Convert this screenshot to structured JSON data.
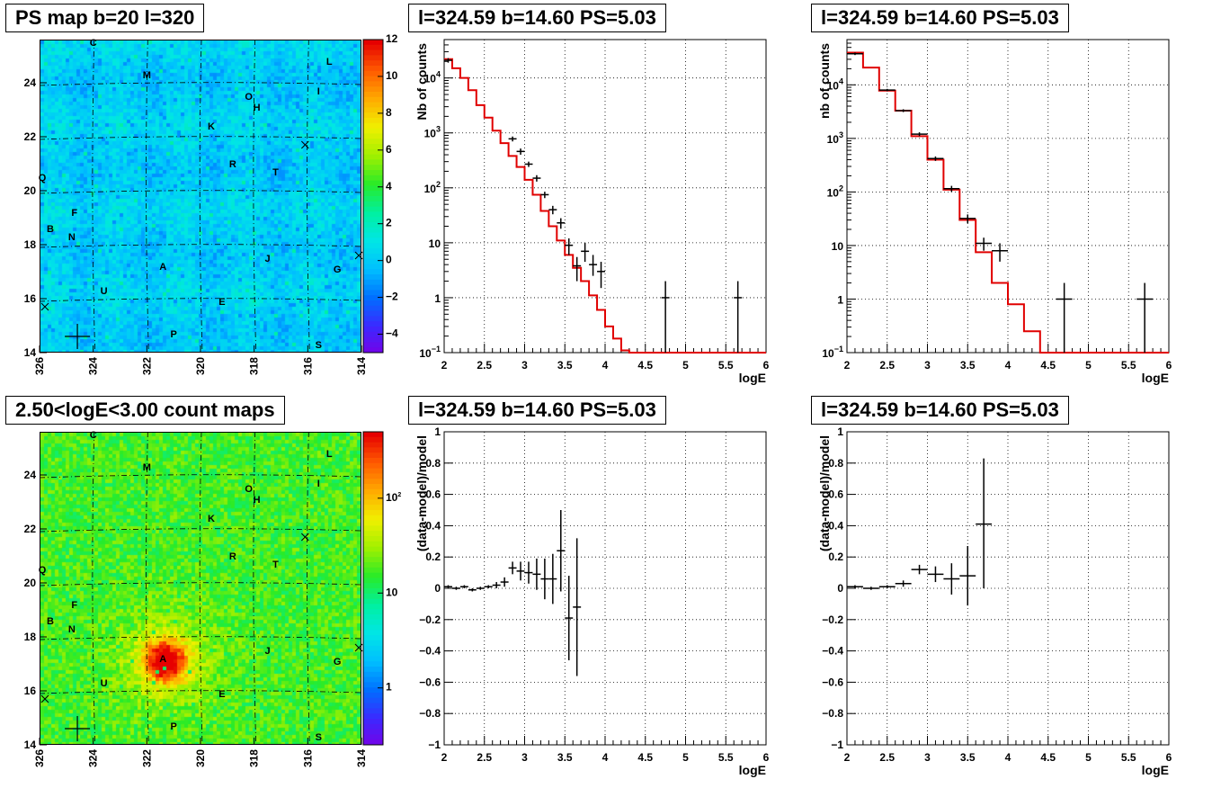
{
  "chart_data": [
    {
      "id": "psmap",
      "type": "heatmap",
      "title": "PS map b=20 l=320",
      "x_ticks": [
        "326",
        "324",
        "322",
        "320",
        "318",
        "316",
        "314"
      ],
      "x_range": [
        326,
        314
      ],
      "y_ticks": [
        "14",
        "16",
        "18",
        "20",
        "22",
        "24"
      ],
      "y_range": [
        14,
        25.6
      ],
      "zlim": [
        -5,
        12
      ],
      "color_scale_ticks": [
        "12",
        "10",
        "8",
        "6",
        "4",
        "2",
        "0",
        "−2",
        "−4"
      ],
      "color_scale_values": [
        12,
        10,
        8,
        6,
        4,
        2,
        0,
        -2,
        -4
      ],
      "colors": {
        "background": "#00d8f0"
      },
      "sources": [
        {
          "label": "C",
          "l": 324.0,
          "b": 25.5
        },
        {
          "label": "M",
          "l": 322.0,
          "b": 24.3
        },
        {
          "label": "L",
          "l": 315.2,
          "b": 24.8
        },
        {
          "label": "I",
          "l": 315.6,
          "b": 23.7
        },
        {
          "label": "O",
          "l": 318.2,
          "b": 23.5
        },
        {
          "label": "H",
          "l": 317.9,
          "b": 23.1
        },
        {
          "label": "K",
          "l": 319.6,
          "b": 22.4
        },
        {
          "label": "R",
          "l": 318.8,
          "b": 21.0
        },
        {
          "label": "T",
          "l": 317.2,
          "b": 20.7
        },
        {
          "label": "Q",
          "l": 325.9,
          "b": 20.5
        },
        {
          "label": "F",
          "l": 324.7,
          "b": 19.2
        },
        {
          "label": "B",
          "l": 325.6,
          "b": 18.6
        },
        {
          "label": "N",
          "l": 324.8,
          "b": 18.3
        },
        {
          "label": "A",
          "l": 321.4,
          "b": 17.2
        },
        {
          "label": "J",
          "l": 317.5,
          "b": 17.5
        },
        {
          "label": "G",
          "l": 314.9,
          "b": 17.1
        },
        {
          "label": "U",
          "l": 323.6,
          "b": 16.3
        },
        {
          "label": "E",
          "l": 319.2,
          "b": 15.9
        },
        {
          "label": "P",
          "l": 321.0,
          "b": 14.7
        },
        {
          "label": "S",
          "l": 315.6,
          "b": 14.3
        }
      ]
    },
    {
      "id": "spec1",
      "type": "line",
      "title": "l=324.59 b=14.60 PS=5.03",
      "xlabel": "logE",
      "ylabel": "Nb of counts",
      "xlim": [
        2,
        6
      ],
      "ylim": [
        0.1,
        50000
      ],
      "yscale": "log",
      "x_ticks": [
        "2",
        "2.5",
        "3",
        "3.5",
        "4",
        "4.5",
        "5",
        "5.5",
        "6"
      ],
      "y_ticks": [
        {
          "v": 0.1,
          "b": "10",
          "e": "−1"
        },
        {
          "v": 1,
          "b": "1",
          "e": ""
        },
        {
          "v": 10,
          "b": "10",
          "e": ""
        },
        {
          "v": 100,
          "b": "10",
          "e": "2"
        },
        {
          "v": 1000,
          "b": "10",
          "e": "3"
        },
        {
          "v": 10000,
          "b": "10",
          "e": "4"
        }
      ],
      "grid": true,
      "model_bin_edges": [
        2.0,
        2.1,
        2.2,
        2.3,
        2.4,
        2.5,
        2.6,
        2.7,
        2.8,
        2.9,
        3.0,
        3.1,
        3.2,
        3.3,
        3.4,
        3.5,
        3.6,
        3.7,
        3.8,
        3.9,
        4.0,
        4.1,
        4.2,
        4.3,
        6.0
      ],
      "model_values": [
        22000,
        15000,
        10000,
        6000,
        3200,
        1900,
        1100,
        650,
        380,
        240,
        140,
        75,
        38,
        20,
        11,
        6,
        3.5,
        2,
        1.1,
        0.6,
        0.3,
        0.18,
        0.11,
        0.1
      ],
      "data_points": [
        {
          "x": 2.05,
          "y": 21000,
          "lo": 19000,
          "hi": 23000,
          "xw": 0.05
        },
        {
          "x": 2.85,
          "y": 780,
          "lo": 700,
          "hi": 860,
          "xw": 0.05
        },
        {
          "x": 2.95,
          "y": 460,
          "lo": 400,
          "hi": 520,
          "xw": 0.05
        },
        {
          "x": 3.05,
          "y": 270,
          "lo": 240,
          "hi": 300,
          "xw": 0.05
        },
        {
          "x": 3.15,
          "y": 150,
          "lo": 130,
          "hi": 170,
          "xw": 0.05
        },
        {
          "x": 3.25,
          "y": 75,
          "lo": 65,
          "hi": 85,
          "xw": 0.05
        },
        {
          "x": 3.35,
          "y": 40,
          "lo": 33,
          "hi": 47,
          "xw": 0.05
        },
        {
          "x": 3.45,
          "y": 23,
          "lo": 18,
          "hi": 28,
          "xw": 0.05
        },
        {
          "x": 3.55,
          "y": 9,
          "lo": 6,
          "hi": 12,
          "xw": 0.05
        },
        {
          "x": 3.65,
          "y": 3.8,
          "lo": 2,
          "hi": 5.5,
          "xw": 0.05
        },
        {
          "x": 3.75,
          "y": 7,
          "lo": 4.5,
          "hi": 10,
          "xw": 0.05
        },
        {
          "x": 3.85,
          "y": 4,
          "lo": 2.5,
          "hi": 6,
          "xw": 0.05
        },
        {
          "x": 3.95,
          "y": 3,
          "lo": 1.5,
          "hi": 4.5,
          "xw": 0.05
        },
        {
          "x": 4.75,
          "y": 1,
          "lo": 0.1,
          "hi": 2,
          "xw": 0.05
        },
        {
          "x": 5.65,
          "y": 1,
          "lo": 0.1,
          "hi": 2,
          "xw": 0.05
        }
      ]
    },
    {
      "id": "spec2",
      "type": "line",
      "title": "l=324.59 b=14.60 PS=5.03",
      "xlabel": "logE",
      "ylabel": "nb of counts",
      "xlim": [
        2,
        6
      ],
      "ylim": [
        0.1,
        70000
      ],
      "yscale": "log",
      "x_ticks": [
        "2",
        "2.5",
        "3",
        "3.5",
        "4",
        "4.5",
        "5",
        "5.5",
        "6"
      ],
      "y_ticks": [
        {
          "v": 0.1,
          "b": "10",
          "e": "−1"
        },
        {
          "v": 1,
          "b": "1",
          "e": ""
        },
        {
          "v": 10,
          "b": "10",
          "e": ""
        },
        {
          "v": 100,
          "b": "10",
          "e": "2"
        },
        {
          "v": 1000,
          "b": "10",
          "e": "3"
        },
        {
          "v": 10000,
          "b": "10",
          "e": "4"
        }
      ],
      "grid": true,
      "model_bin_edges": [
        2.0,
        2.2,
        2.4,
        2.6,
        2.8,
        3.0,
        3.2,
        3.4,
        3.6,
        3.8,
        4.0,
        4.2,
        4.4,
        6.0
      ],
      "model_values": [
        40000,
        21000,
        7800,
        3300,
        1100,
        400,
        110,
        30,
        7.5,
        2,
        0.8,
        0.25,
        0.1
      ],
      "data_points": [
        {
          "x": 2.1,
          "y": 38000,
          "lo": 36000,
          "hi": 40000,
          "xw": 0.1
        },
        {
          "x": 2.5,
          "y": 8000,
          "lo": 7600,
          "hi": 8400,
          "xw": 0.1
        },
        {
          "x": 2.7,
          "y": 3300,
          "lo": 3100,
          "hi": 3500,
          "xw": 0.1
        },
        {
          "x": 2.9,
          "y": 1200,
          "lo": 1100,
          "hi": 1300,
          "xw": 0.1
        },
        {
          "x": 3.1,
          "y": 420,
          "lo": 380,
          "hi": 460,
          "xw": 0.1
        },
        {
          "x": 3.3,
          "y": 115,
          "lo": 100,
          "hi": 130,
          "xw": 0.1
        },
        {
          "x": 3.5,
          "y": 32,
          "lo": 26,
          "hi": 38,
          "xw": 0.1
        },
        {
          "x": 3.7,
          "y": 11,
          "lo": 8,
          "hi": 14,
          "xw": 0.1
        },
        {
          "x": 3.9,
          "y": 8,
          "lo": 5,
          "hi": 11,
          "xw": 0.1
        },
        {
          "x": 4.7,
          "y": 1,
          "lo": 0.1,
          "hi": 2,
          "xw": 0.1
        },
        {
          "x": 5.7,
          "y": 1,
          "lo": 0.1,
          "hi": 2,
          "xw": 0.1
        }
      ]
    },
    {
      "id": "countmap",
      "type": "heatmap",
      "title": "2.50<logE<3.00 count maps",
      "x_ticks": [
        "326",
        "324",
        "322",
        "320",
        "318",
        "316",
        "314"
      ],
      "x_range": [
        326,
        314
      ],
      "y_ticks": [
        "14",
        "16",
        "18",
        "20",
        "22",
        "24"
      ],
      "y_range": [
        14,
        25.6
      ],
      "zscale": "log",
      "color_scale_ticks": [
        {
          "b": "10",
          "e": "2"
        },
        {
          "b": "10",
          "e": ""
        },
        {
          "b": "1",
          "e": ""
        }
      ],
      "color_scale_values": [
        100,
        10,
        1
      ],
      "colors": {
        "background": "#40e020",
        "hot": "#e00000"
      },
      "sources": [
        {
          "label": "C",
          "l": 324.0,
          "b": 25.5
        },
        {
          "label": "M",
          "l": 322.0,
          "b": 24.3
        },
        {
          "label": "L",
          "l": 315.2,
          "b": 24.8
        },
        {
          "label": "I",
          "l": 315.6,
          "b": 23.7
        },
        {
          "label": "O",
          "l": 318.2,
          "b": 23.5
        },
        {
          "label": "H",
          "l": 317.9,
          "b": 23.1
        },
        {
          "label": "K",
          "l": 319.6,
          "b": 22.4
        },
        {
          "label": "R",
          "l": 318.8,
          "b": 21.0
        },
        {
          "label": "T",
          "l": 317.2,
          "b": 20.7
        },
        {
          "label": "Q",
          "l": 325.9,
          "b": 20.5
        },
        {
          "label": "F",
          "l": 324.7,
          "b": 19.2
        },
        {
          "label": "B",
          "l": 325.6,
          "b": 18.6
        },
        {
          "label": "N",
          "l": 324.8,
          "b": 18.3
        },
        {
          "label": "A",
          "l": 321.4,
          "b": 17.2
        },
        {
          "label": "J",
          "l": 317.5,
          "b": 17.5
        },
        {
          "label": "G",
          "l": 314.9,
          "b": 17.1
        },
        {
          "label": "U",
          "l": 323.6,
          "b": 16.3
        },
        {
          "label": "E",
          "l": 319.2,
          "b": 15.9
        },
        {
          "label": "P",
          "l": 321.0,
          "b": 14.7
        },
        {
          "label": "S",
          "l": 315.6,
          "b": 14.3
        }
      ]
    },
    {
      "id": "res1",
      "type": "scatter",
      "title": "l=324.59 b=14.60 PS=5.03",
      "xlabel": "logE",
      "ylabel": "(data-model)/model",
      "xlim": [
        2,
        6
      ],
      "ylim": [
        -1,
        1
      ],
      "x_ticks": [
        "2",
        "2.5",
        "3",
        "3.5",
        "4",
        "4.5",
        "5",
        "5.5",
        "6"
      ],
      "y_ticks": [
        "1",
        "0.8",
        "0.6",
        "0.4",
        "0.2",
        "0",
        "−0.2",
        "−0.4",
        "−0.6",
        "−0.8",
        "−1"
      ],
      "grid": true,
      "data_points": [
        {
          "x": 2.05,
          "y": 0.01,
          "lo": 0.0,
          "hi": 0.02,
          "xw": 0.05
        },
        {
          "x": 2.15,
          "y": 0.0,
          "lo": -0.01,
          "hi": 0.01,
          "xw": 0.05
        },
        {
          "x": 2.25,
          "y": 0.01,
          "lo": 0.0,
          "hi": 0.02,
          "xw": 0.05
        },
        {
          "x": 2.35,
          "y": -0.01,
          "lo": -0.02,
          "hi": 0.0,
          "xw": 0.05
        },
        {
          "x": 2.45,
          "y": 0.0,
          "lo": -0.01,
          "hi": 0.01,
          "xw": 0.05
        },
        {
          "x": 2.55,
          "y": 0.01,
          "lo": 0.0,
          "hi": 0.02,
          "xw": 0.05
        },
        {
          "x": 2.65,
          "y": 0.02,
          "lo": 0.0,
          "hi": 0.04,
          "xw": 0.05
        },
        {
          "x": 2.75,
          "y": 0.04,
          "lo": 0.01,
          "hi": 0.07,
          "xw": 0.05
        },
        {
          "x": 2.85,
          "y": 0.13,
          "lo": 0.09,
          "hi": 0.17,
          "xw": 0.05
        },
        {
          "x": 2.95,
          "y": 0.11,
          "lo": 0.05,
          "hi": 0.17,
          "xw": 0.05
        },
        {
          "x": 3.05,
          "y": 0.1,
          "lo": 0.03,
          "hi": 0.17,
          "xw": 0.05
        },
        {
          "x": 3.15,
          "y": 0.09,
          "lo": -0.01,
          "hi": 0.19,
          "xw": 0.05
        },
        {
          "x": 3.25,
          "y": 0.06,
          "lo": -0.07,
          "hi": 0.19,
          "xw": 0.05
        },
        {
          "x": 3.35,
          "y": 0.06,
          "lo": -0.1,
          "hi": 0.22,
          "xw": 0.05
        },
        {
          "x": 3.45,
          "y": 0.24,
          "lo": -0.02,
          "hi": 0.5,
          "xw": 0.05
        },
        {
          "x": 3.55,
          "y": -0.19,
          "lo": -0.46,
          "hi": 0.08,
          "xw": 0.05
        },
        {
          "x": 3.65,
          "y": -0.12,
          "lo": -0.56,
          "hi": 0.32,
          "xw": 0.05
        }
      ]
    },
    {
      "id": "res2",
      "type": "scatter",
      "title": "l=324.59 b=14.60 PS=5.03",
      "xlabel": "logE",
      "ylabel": "(data-model)/model",
      "xlim": [
        2,
        6
      ],
      "ylim": [
        -1,
        1
      ],
      "x_ticks": [
        "2",
        "2.5",
        "3",
        "3.5",
        "4",
        "4.5",
        "5",
        "5.5",
        "6"
      ],
      "y_ticks": [
        "1",
        "0.8",
        "0.6",
        "0.4",
        "0.2",
        "0",
        "−0.2",
        "−0.4",
        "−0.6",
        "−0.8",
        "−1"
      ],
      "grid": true,
      "data_points": [
        {
          "x": 2.1,
          "y": 0.01,
          "lo": 0.0,
          "hi": 0.02,
          "xw": 0.1
        },
        {
          "x": 2.3,
          "y": 0.0,
          "lo": -0.01,
          "hi": 0.01,
          "xw": 0.1
        },
        {
          "x": 2.5,
          "y": 0.01,
          "lo": 0.0,
          "hi": 0.02,
          "xw": 0.1
        },
        {
          "x": 2.7,
          "y": 0.03,
          "lo": 0.01,
          "hi": 0.05,
          "xw": 0.1
        },
        {
          "x": 2.9,
          "y": 0.12,
          "lo": 0.09,
          "hi": 0.15,
          "xw": 0.1
        },
        {
          "x": 3.1,
          "y": 0.09,
          "lo": 0.04,
          "hi": 0.14,
          "xw": 0.1
        },
        {
          "x": 3.3,
          "y": 0.06,
          "lo": -0.04,
          "hi": 0.16,
          "xw": 0.1
        },
        {
          "x": 3.5,
          "y": 0.08,
          "lo": -0.11,
          "hi": 0.27,
          "xw": 0.1
        },
        {
          "x": 3.7,
          "y": 0.41,
          "lo": 0.0,
          "hi": 0.83,
          "xw": 0.1
        }
      ]
    }
  ]
}
